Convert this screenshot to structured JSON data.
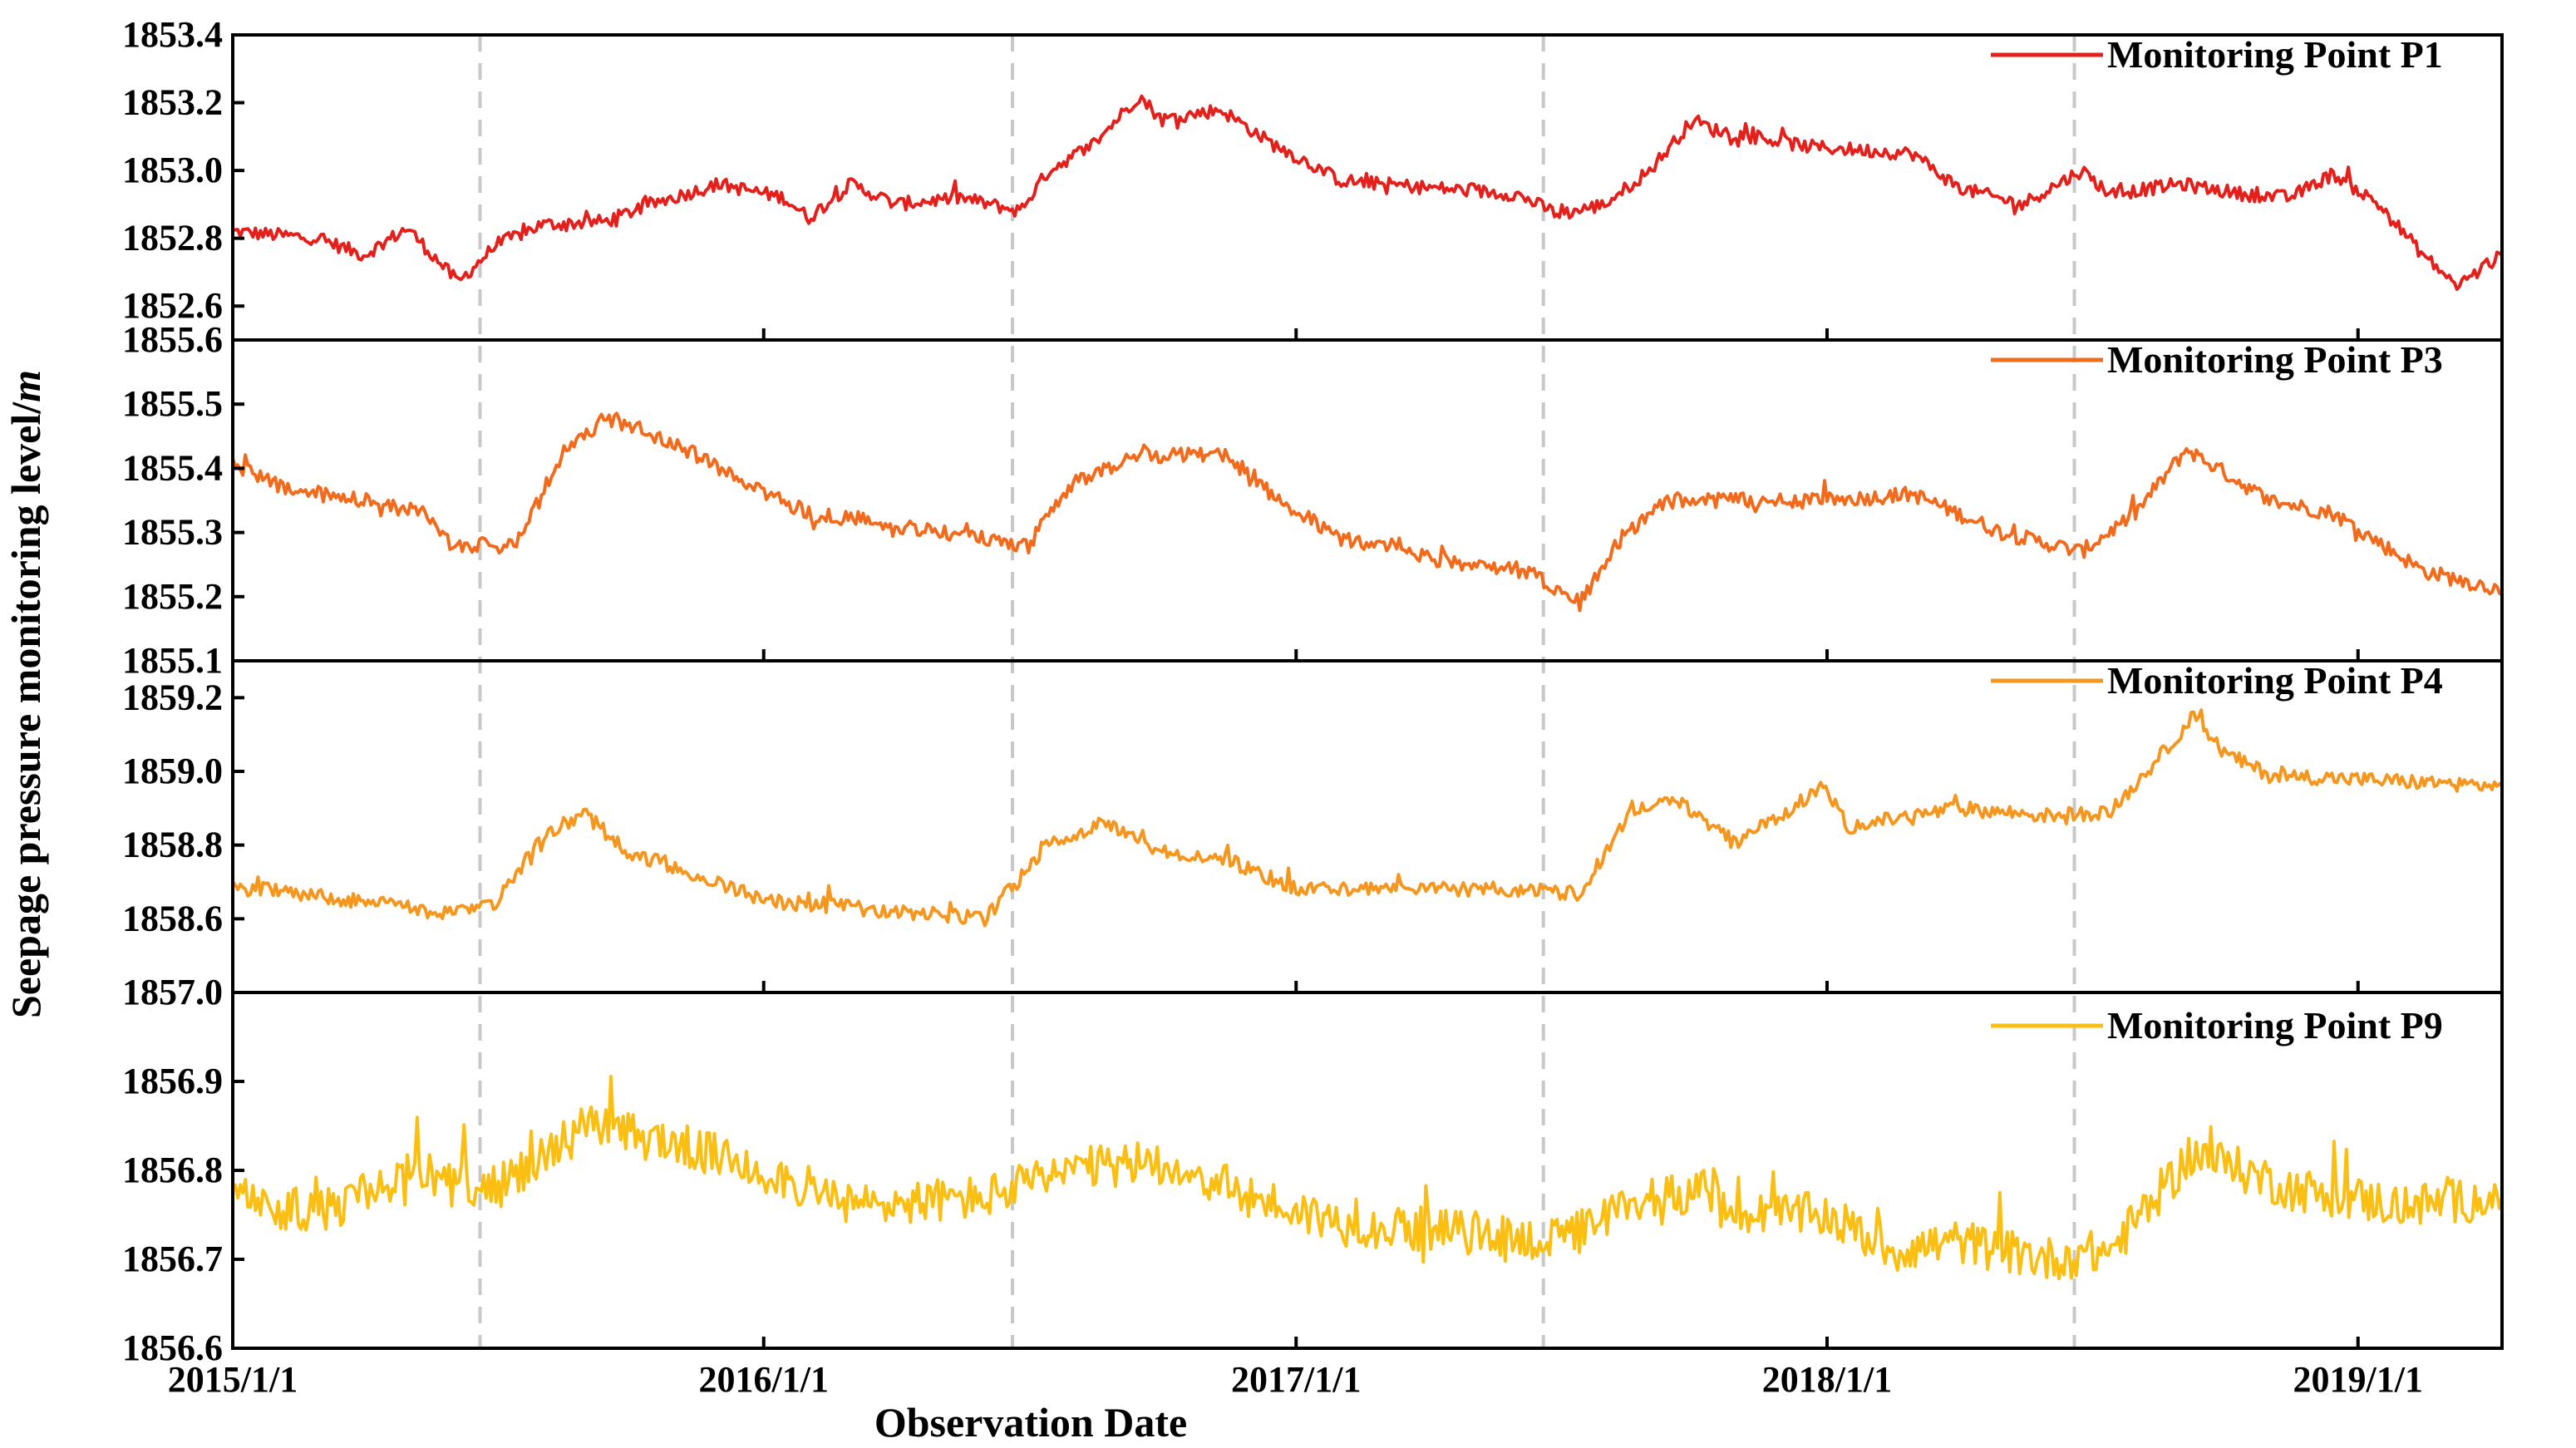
{
  "chart_data": {
    "type": "line",
    "xlabel": "Observation Date",
    "ylabel": "Seepage pressure monitoring level/",
    "ylabel_unit": "m",
    "x_ticks": [
      "2015/1/1",
      "2016/1/1",
      "2017/1/1",
      "2018/1/1",
      "2019/1/1"
    ],
    "xlim": [
      "2015/1/1",
      "2019/4/10"
    ],
    "dashed_reference_dates": [
      "2015/6/20",
      "2016/6/20",
      "2017/6/20",
      "2018/6/20"
    ],
    "grid": false,
    "legend_position": "top-right",
    "panels": [
      {
        "name": "Monitoring Point P1",
        "color": "#e4201c",
        "ylim": [
          1852.5,
          1853.4
        ],
        "yticks": [
          "1853.4",
          "1853.2",
          "1853.0",
          "1852.8",
          "1852.6"
        ],
        "noise": 0.02,
        "series": [
          [
            "2015/1/1",
            1852.82
          ],
          [
            "2015/3/1",
            1852.8
          ],
          [
            "2015/4/1",
            1852.75
          ],
          [
            "2015/5/1",
            1852.83
          ],
          [
            "2015/6/5",
            1852.67
          ],
          [
            "2015/7/1",
            1852.78
          ],
          [
            "2015/8/1",
            1852.84
          ],
          [
            "2015/9/15",
            1852.85
          ],
          [
            "2015/10/15",
            1852.9
          ],
          [
            "2015/12/1",
            1852.96
          ],
          [
            "2016/1/15",
            1852.92
          ],
          [
            "2016/2/1",
            1852.86
          ],
          [
            "2016/3/1",
            1852.96
          ],
          [
            "2016/4/1",
            1852.9
          ],
          [
            "2016/5/15",
            1852.92
          ],
          [
            "2016/6/25",
            1852.88
          ],
          [
            "2016/7/15",
            1853.0
          ],
          [
            "2016/8/15",
            1853.08
          ],
          [
            "2016/9/15",
            1853.22
          ],
          [
            "2016/10/1",
            1853.15
          ],
          [
            "2016/11/10",
            1853.18
          ],
          [
            "2016/12/15",
            1853.08
          ],
          [
            "2017/2/1",
            1852.97
          ],
          [
            "2017/4/1",
            1852.95
          ],
          [
            "2017/6/1",
            1852.93
          ],
          [
            "2017/7/1",
            1852.87
          ],
          [
            "2017/8/1",
            1852.9
          ],
          [
            "2017/9/1",
            1853.0
          ],
          [
            "2017/10/1",
            1853.15
          ],
          [
            "2017/10/15",
            1853.12
          ],
          [
            "2017/12/20",
            1853.07
          ],
          [
            "2018/3/1",
            1853.05
          ],
          [
            "2018/4/1",
            1852.95
          ],
          [
            "2018/5/15",
            1852.9
          ],
          [
            "2018/6/25",
            1853.0
          ],
          [
            "2018/7/15",
            1852.93
          ],
          [
            "2018/9/1",
            1852.96
          ],
          [
            "2018/10/15",
            1852.93
          ],
          [
            "2018/11/15",
            1852.92
          ],
          [
            "2018/12/15",
            1852.99
          ],
          [
            "2019/1/15",
            1852.9
          ],
          [
            "2019/2/15",
            1852.75
          ],
          [
            "2019/3/10",
            1852.66
          ],
          [
            "2019/4/10",
            1852.75
          ]
        ]
      },
      {
        "name": "Monitoring Point P3",
        "color": "#f26b1d",
        "ylim": [
          1855.1,
          1855.6
        ],
        "yticks": [
          "1855.6",
          "1855.5",
          "1855.4",
          "1855.3",
          "1855.2",
          "1855.1"
        ],
        "noise": 0.012,
        "series": [
          [
            "2015/1/1",
            1855.41
          ],
          [
            "2015/2/1",
            1855.37
          ],
          [
            "2015/4/1",
            1855.35
          ],
          [
            "2015/5/15",
            1855.33
          ],
          [
            "2015/6/1",
            1855.28
          ],
          [
            "2015/7/15",
            1855.28
          ],
          [
            "2015/8/15",
            1855.42
          ],
          [
            "2015/9/15",
            1855.48
          ],
          [
            "2015/11/1",
            1855.44
          ],
          [
            "2015/12/15",
            1855.38
          ],
          [
            "2016/2/1",
            1855.33
          ],
          [
            "2016/5/1",
            1855.3
          ],
          [
            "2016/7/1",
            1855.28
          ],
          [
            "2016/8/1",
            1855.38
          ],
          [
            "2016/9/15",
            1855.42
          ],
          [
            "2016/11/15",
            1855.42
          ],
          [
            "2016/12/15",
            1855.36
          ],
          [
            "2017/2/1",
            1855.29
          ],
          [
            "2017/4/1",
            1855.26
          ],
          [
            "2017/6/10",
            1855.24
          ],
          [
            "2017/7/15",
            1855.19
          ],
          [
            "2017/8/15",
            1855.3
          ],
          [
            "2017/9/15",
            1855.35
          ],
          [
            "2017/10/20",
            1855.35
          ],
          [
            "2018/1/1",
            1855.35
          ],
          [
            "2018/3/1",
            1855.36
          ],
          [
            "2018/5/1",
            1855.3
          ],
          [
            "2018/6/25",
            1855.27
          ],
          [
            "2018/8/1",
            1855.33
          ],
          [
            "2018/9/5",
            1855.43
          ],
          [
            "2018/11/1",
            1855.35
          ],
          [
            "2018/12/15",
            1855.33
          ],
          [
            "2019/2/15",
            1855.24
          ],
          [
            "2019/4/10",
            1855.21
          ]
        ]
      },
      {
        "name": "Monitoring Point P4",
        "color": "#f5961e",
        "ylim": [
          1858.4,
          1859.3
        ],
        "yticks": [
          "1859.2",
          "1859.0",
          "1858.8",
          "1858.6"
        ],
        "bottom_tick": "1857.0",
        "noise": 0.02,
        "series": [
          [
            "2015/1/1",
            1858.69
          ],
          [
            "2015/3/1",
            1858.66
          ],
          [
            "2015/6/1",
            1858.62
          ],
          [
            "2015/7/1",
            1858.64
          ],
          [
            "2015/8/1",
            1858.82
          ],
          [
            "2015/9/1",
            1858.88
          ],
          [
            "2015/10/1",
            1858.78
          ],
          [
            "2015/11/15",
            1858.72
          ],
          [
            "2016/1/1",
            1858.65
          ],
          [
            "2016/4/1",
            1858.62
          ],
          [
            "2016/6/1",
            1858.6
          ],
          [
            "2016/7/15",
            1858.8
          ],
          [
            "2016/8/20",
            1858.86
          ],
          [
            "2016/10/1",
            1858.78
          ],
          [
            "2016/11/15",
            1858.76
          ],
          [
            "2017/1/1",
            1858.68
          ],
          [
            "2017/6/1",
            1858.68
          ],
          [
            "2017/7/15",
            1858.67
          ],
          [
            "2017/8/20",
            1858.9
          ],
          [
            "2017/9/20",
            1858.92
          ],
          [
            "2017/10/15",
            1858.85
          ],
          [
            "2017/11/1",
            1858.81
          ],
          [
            "2017/12/31",
            1858.96
          ],
          [
            "2018/1/15",
            1858.85
          ],
          [
            "2018/4/1",
            1858.9
          ],
          [
            "2018/6/1",
            1858.88
          ],
          [
            "2018/7/15",
            1858.89
          ],
          [
            "2018/8/20",
            1859.05
          ],
          [
            "2018/9/10",
            1859.15
          ],
          [
            "2018/10/1",
            1859.05
          ],
          [
            "2018/11/1",
            1858.99
          ],
          [
            "2019/4/10",
            1858.96
          ]
        ]
      },
      {
        "name": "Monitoring Point P9",
        "color": "#fbbf14",
        "ylim": [
          1856.6,
          1857.0
        ],
        "yticks": [
          "1856.9",
          "1856.8",
          "1856.7",
          "1856.6"
        ],
        "noise": 0.025,
        "series": [
          [
            "2015/1/1",
            1856.77
          ],
          [
            "2015/3/1",
            1856.75
          ],
          [
            "2015/5/1",
            1856.8
          ],
          [
            "2015/7/1",
            1856.78
          ],
          [
            "2015/9/1",
            1856.85
          ],
          [
            "2015/11/1",
            1856.83
          ],
          [
            "2016/1/1",
            1856.8
          ],
          [
            "2016/3/1",
            1856.76
          ],
          [
            "2016/6/1",
            1856.77
          ],
          [
            "2016/8/1",
            1856.8
          ],
          [
            "2016/10/1",
            1856.81
          ],
          [
            "2016/12/1",
            1856.77
          ],
          [
            "2017/2/1",
            1856.74
          ],
          [
            "2017/5/1",
            1856.73
          ],
          [
            "2017/7/1",
            1856.72
          ],
          [
            "2017/9/1",
            1856.77
          ],
          [
            "2017/10/15",
            1856.78
          ],
          [
            "2017/10/20",
            1856.75
          ],
          [
            "2017/12/31",
            1856.75
          ],
          [
            "2018/2/15",
            1856.71
          ],
          [
            "2018/4/1",
            1856.72
          ],
          [
            "2018/6/1",
            1856.7
          ],
          [
            "2018/7/15",
            1856.71
          ],
          [
            "2018/9/10",
            1856.82
          ],
          [
            "2018/11/15",
            1856.78
          ],
          [
            "2019/2/1",
            1856.76
          ],
          [
            "2019/4/10",
            1856.77
          ]
        ]
      }
    ]
  }
}
